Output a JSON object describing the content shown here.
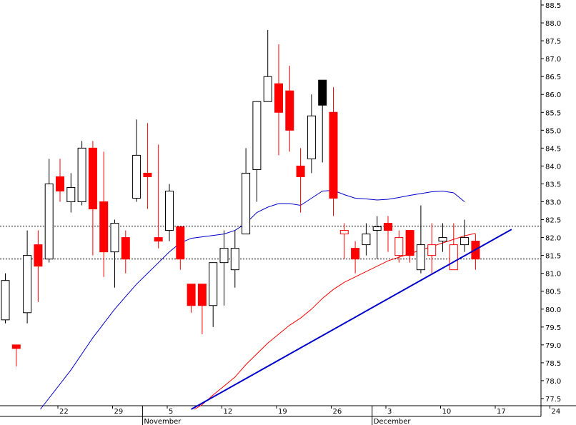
{
  "chart_data": {
    "type": "candlestick",
    "title": "",
    "xlabel": "",
    "ylabel": "",
    "ylim": [
      77.2,
      88.7
    ],
    "yticks": [
      77.5,
      78.0,
      78.5,
      79.0,
      79.5,
      80.0,
      80.5,
      81.0,
      81.5,
      82.0,
      82.5,
      83.0,
      83.5,
      84.0,
      84.5,
      85.0,
      85.5,
      86.0,
      86.5,
      87.0,
      87.5,
      88.0,
      88.5
    ],
    "x_day_ticks": [
      {
        "label": "22",
        "day": 5
      },
      {
        "label": "29",
        "day": 10
      },
      {
        "label": "5",
        "day": 15
      },
      {
        "label": "12",
        "day": 20
      },
      {
        "label": "19",
        "day": 25
      },
      {
        "label": "26",
        "day": 30
      },
      {
        "label": "3",
        "day": 35
      },
      {
        "label": "10",
        "day": 40
      },
      {
        "label": "17",
        "day": 45
      },
      {
        "label": "24",
        "day": 50
      }
    ],
    "x_month_labels": [
      {
        "label": "November",
        "day": 13
      },
      {
        "label": "December",
        "day": 34
      }
    ],
    "up_color": "#ffffff",
    "down_color": "#ff0000",
    "candles": [
      {
        "day": 0,
        "open": 79.7,
        "close": 80.8,
        "high": 81.0,
        "low": 79.6,
        "dir": "up"
      },
      {
        "day": 1,
        "open": 79.0,
        "close": 78.9,
        "high": 79.0,
        "low": 78.4,
        "dir": "down"
      },
      {
        "day": 2,
        "open": 79.9,
        "close": 81.5,
        "high": 82.2,
        "low": 79.6,
        "dir": "up"
      },
      {
        "day": 3,
        "open": 81.8,
        "close": 81.2,
        "high": 82.2,
        "low": 80.2,
        "dir": "down"
      },
      {
        "day": 4,
        "open": 81.4,
        "close": 83.5,
        "high": 84.2,
        "low": 81.3,
        "dir": "up"
      },
      {
        "day": 5,
        "open": 83.7,
        "close": 83.3,
        "high": 84.2,
        "low": 83.0,
        "dir": "down"
      },
      {
        "day": 6,
        "open": 83.0,
        "close": 83.4,
        "high": 83.8,
        "low": 82.7,
        "dir": "up"
      },
      {
        "day": 7,
        "open": 83.0,
        "close": 84.5,
        "high": 84.7,
        "low": 82.9,
        "dir": "up"
      },
      {
        "day": 8,
        "open": 84.5,
        "close": 82.8,
        "high": 84.7,
        "low": 81.5,
        "dir": "down"
      },
      {
        "day": 9,
        "open": 83.0,
        "close": 81.6,
        "high": 84.4,
        "low": 80.9,
        "dir": "down"
      },
      {
        "day": 10,
        "open": 81.6,
        "close": 82.4,
        "high": 82.5,
        "low": 80.6,
        "dir": "up"
      },
      {
        "day": 11,
        "open": 82.0,
        "close": 81.4,
        "high": 82.2,
        "low": 81.0,
        "dir": "down"
      },
      {
        "day": 12,
        "open": 83.1,
        "close": 84.3,
        "high": 85.3,
        "low": 83.0,
        "dir": "up"
      },
      {
        "day": 13,
        "open": 83.8,
        "close": 83.7,
        "high": 85.2,
        "low": 82.8,
        "dir": "down"
      },
      {
        "day": 14,
        "open": 82.0,
        "close": 81.9,
        "high": 84.6,
        "low": 81.7,
        "dir": "down"
      },
      {
        "day": 15,
        "open": 82.2,
        "close": 83.3,
        "high": 83.5,
        "low": 81.9,
        "dir": "up"
      },
      {
        "day": 16,
        "open": 82.3,
        "close": 81.4,
        "high": 82.3,
        "low": 81.1,
        "dir": "down"
      },
      {
        "day": 17,
        "open": 80.7,
        "close": 80.1,
        "high": 80.7,
        "low": 79.9,
        "dir": "down"
      },
      {
        "day": 18,
        "open": 80.7,
        "close": 80.1,
        "high": 80.7,
        "low": 79.3,
        "dir": "down"
      },
      {
        "day": 19,
        "open": 80.1,
        "close": 81.3,
        "high": 81.3,
        "low": 79.5,
        "dir": "up"
      },
      {
        "day": 20,
        "open": 81.3,
        "close": 81.7,
        "high": 82.2,
        "low": 80.1,
        "dir": "up"
      },
      {
        "day": 21,
        "open": 81.1,
        "close": 81.7,
        "high": 82.2,
        "low": 80.6,
        "dir": "up"
      },
      {
        "day": 22,
        "open": 82.1,
        "close": 83.8,
        "high": 84.5,
        "low": 82.1,
        "dir": "up"
      },
      {
        "day": 23,
        "open": 83.9,
        "close": 85.8,
        "high": 85.8,
        "low": 83.0,
        "dir": "up"
      },
      {
        "day": 24,
        "open": 85.8,
        "close": 86.5,
        "high": 87.8,
        "low": 85.8,
        "dir": "up"
      },
      {
        "day": 25,
        "open": 86.3,
        "close": 85.5,
        "high": 87.4,
        "low": 84.3,
        "dir": "down"
      },
      {
        "day": 26,
        "open": 86.1,
        "close": 85.0,
        "high": 86.8,
        "low": 84.4,
        "dir": "down"
      },
      {
        "day": 27,
        "open": 84.0,
        "close": 83.7,
        "high": 84.5,
        "low": 82.7,
        "dir": "down"
      },
      {
        "day": 28,
        "open": 84.2,
        "close": 85.4,
        "high": 86.0,
        "low": 83.8,
        "dir": "up"
      },
      {
        "day": 29,
        "open": 86.4,
        "close": 85.7,
        "high": 86.4,
        "low": 84.1,
        "dir": "down",
        "color": "#000000"
      },
      {
        "day": 30,
        "open": 85.5,
        "close": 83.1,
        "high": 86.2,
        "low": 82.6,
        "dir": "down"
      },
      {
        "day": 31,
        "open": 82.2,
        "close": 82.1,
        "high": 82.4,
        "low": 81.4,
        "dir": "down",
        "color": "#ffffff",
        "stroke": "#ff0000"
      },
      {
        "day": 32,
        "open": 81.7,
        "close": 81.4,
        "high": 81.9,
        "low": 81.0,
        "dir": "down"
      },
      {
        "day": 33,
        "open": 81.8,
        "close": 82.1,
        "high": 82.4,
        "low": 81.5,
        "dir": "up"
      },
      {
        "day": 34,
        "open": 82.2,
        "close": 82.3,
        "high": 82.6,
        "low": 81.4,
        "dir": "up"
      },
      {
        "day": 35,
        "open": 82.4,
        "close": 82.2,
        "high": 82.6,
        "low": 81.6,
        "dir": "down"
      },
      {
        "day": 36,
        "open": 81.5,
        "close": 82.0,
        "high": 82.2,
        "low": 81.3,
        "dir": "up",
        "stroke": "#ff0000"
      },
      {
        "day": 37,
        "open": 82.2,
        "close": 81.5,
        "high": 82.2,
        "low": 81.3,
        "dir": "down"
      },
      {
        "day": 38,
        "open": 81.1,
        "close": 81.8,
        "high": 82.9,
        "low": 81.0,
        "dir": "up"
      },
      {
        "day": 39,
        "open": 81.5,
        "close": 81.8,
        "high": 82.4,
        "low": 81.0,
        "dir": "up",
        "stroke": "#ff0000"
      },
      {
        "day": 40,
        "open": 81.9,
        "close": 82.0,
        "high": 82.4,
        "low": 81.6,
        "dir": "up"
      },
      {
        "day": 41,
        "open": 81.1,
        "close": 81.8,
        "high": 82.4,
        "low": 81.1,
        "dir": "up",
        "stroke": "#ff0000"
      },
      {
        "day": 42,
        "open": 81.8,
        "close": 82.0,
        "high": 82.5,
        "low": 81.6,
        "dir": "up"
      },
      {
        "day": 43,
        "open": 81.9,
        "close": 81.4,
        "high": 82.1,
        "low": 81.1,
        "dir": "down"
      }
    ],
    "reference_lines": [
      {
        "name": "resistance",
        "y": 82.32,
        "style": "dashed",
        "color": "#000000"
      },
      {
        "name": "support",
        "y": 81.4,
        "style": "dashed",
        "color": "#000000"
      }
    ],
    "trendline": {
      "color": "#0000cc",
      "x1": 17.0,
      "y1": 77.2,
      "x2": 46.3,
      "y2": 82.23
    },
    "series": [
      {
        "color": "#0000cc",
        "x": [
          3.2,
          6.0,
          8.0,
          10.0,
          12.0,
          14.0,
          15.0,
          16.0,
          17.0,
          18.0,
          19.0,
          20.0,
          21.0,
          22.0,
          23.0,
          24.0,
          25.0,
          26.0,
          27.0,
          28.0,
          29.0,
          30.0,
          31.0,
          32.0,
          33.0,
          34.0,
          35.0,
          36.0,
          37.0,
          38.0,
          39.0,
          40.0,
          41.0,
          42.0
        ],
        "y": [
          77.2,
          78.3,
          79.2,
          80.0,
          80.7,
          81.3,
          81.6,
          81.85,
          81.98,
          82.02,
          82.06,
          82.1,
          82.2,
          82.4,
          82.7,
          82.85,
          82.95,
          82.95,
          82.9,
          83.1,
          83.3,
          83.32,
          83.2,
          83.1,
          83.08,
          83.05,
          83.07,
          83.12,
          83.18,
          83.23,
          83.28,
          83.3,
          83.25,
          83.0
        ]
      },
      {
        "color": "#ff0000",
        "x": [
          17.3,
          18.0,
          19.0,
          20.0,
          21.0,
          22.0,
          23.0,
          24.0,
          25.0,
          26.0,
          27.0,
          28.0,
          29.0,
          30.0,
          31.0,
          32.0,
          33.0,
          34.0,
          35.0,
          36.0,
          37.0,
          38.0,
          39.0,
          40.0,
          41.0,
          42.0,
          43.0
        ],
        "y": [
          77.2,
          77.33,
          77.6,
          77.85,
          78.1,
          78.45,
          78.75,
          79.05,
          79.3,
          79.55,
          79.75,
          80.0,
          80.3,
          80.55,
          80.75,
          80.9,
          81.05,
          81.2,
          81.35,
          81.45,
          81.55,
          81.65,
          81.75,
          81.85,
          81.95,
          82.05,
          82.12
        ]
      }
    ]
  }
}
